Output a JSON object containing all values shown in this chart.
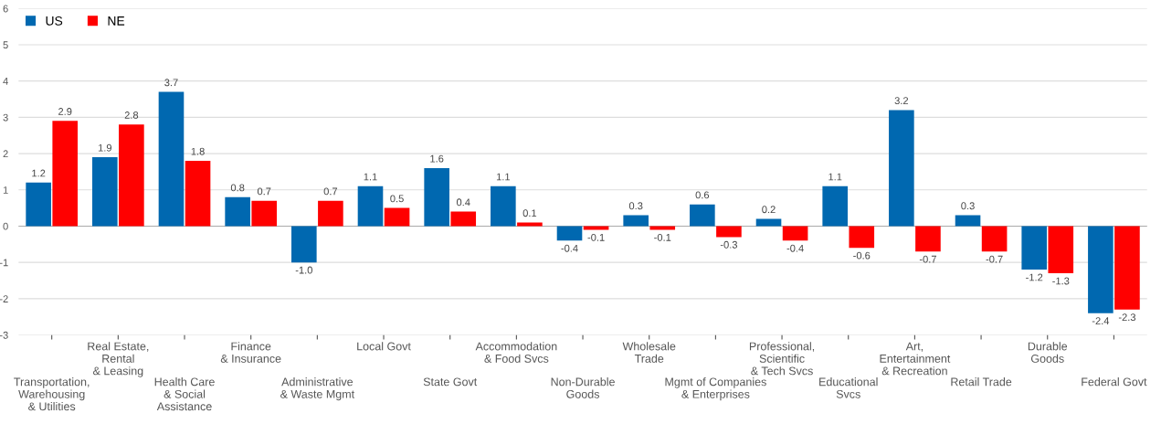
{
  "chart_data": {
    "type": "bar",
    "categories": [
      "Transportation,\nWarehousing\n& Utilities",
      "Real Estate,\nRental\n& Leasing",
      "Health Care\n& Social\nAssistance",
      "Finance\n& Insurance",
      "Administrative\n& Waste Mgmt",
      "Local Govt",
      "State Govt",
      "Accommodation\n& Food Svcs",
      "Non-Durable\nGoods",
      "Wholesale\nTrade",
      "Mgmt of Companies\n& Enterprises",
      "Professional,\nScientific\n& Tech Svcs",
      "Educational\nSvcs",
      "Art,\nEntertainment\n& Recreation",
      "Retail Trade",
      "Durable\nGoods",
      "Federal Govt"
    ],
    "series": [
      {
        "name": "US",
        "color": "#0068b0",
        "values": [
          1.2,
          1.9,
          3.7,
          0.8,
          -1.0,
          1.1,
          1.6,
          1.1,
          -0.4,
          0.3,
          0.6,
          0.2,
          1.1,
          3.2,
          0.3,
          -1.2,
          -2.4
        ],
        "value_labels": [
          "1.2",
          "1.9",
          "3.7",
          "0.8",
          "-1.0",
          "1.1",
          "1.6",
          "1.1",
          "-0.4",
          "0.3",
          "0.6",
          "0.2",
          "1.1",
          "3.2",
          "0.3",
          "-1.2",
          "-2.4"
        ]
      },
      {
        "name": "NE",
        "color": "#ff0000",
        "values": [
          2.9,
          2.8,
          1.8,
          0.7,
          0.7,
          0.5,
          0.4,
          0.1,
          -0.1,
          -0.1,
          -0.3,
          -0.4,
          -0.6,
          -0.7,
          -0.7,
          -1.3,
          -2.3
        ],
        "value_labels": [
          "2.9",
          "2.8",
          "1.8",
          "0.7",
          "0.7",
          "0.5",
          "0.4",
          "0.1",
          "-0.1",
          "-0.1",
          "-0.3",
          "-0.4",
          "-0.6",
          "-0.7",
          "-0.7",
          "-1.3",
          "-2.3"
        ]
      }
    ],
    "ylim": [
      -3,
      6
    ],
    "yticks": [
      -3,
      -2,
      -1,
      0,
      1,
      2,
      3,
      4,
      5,
      6
    ],
    "grid": "y",
    "legend": "top left"
  }
}
